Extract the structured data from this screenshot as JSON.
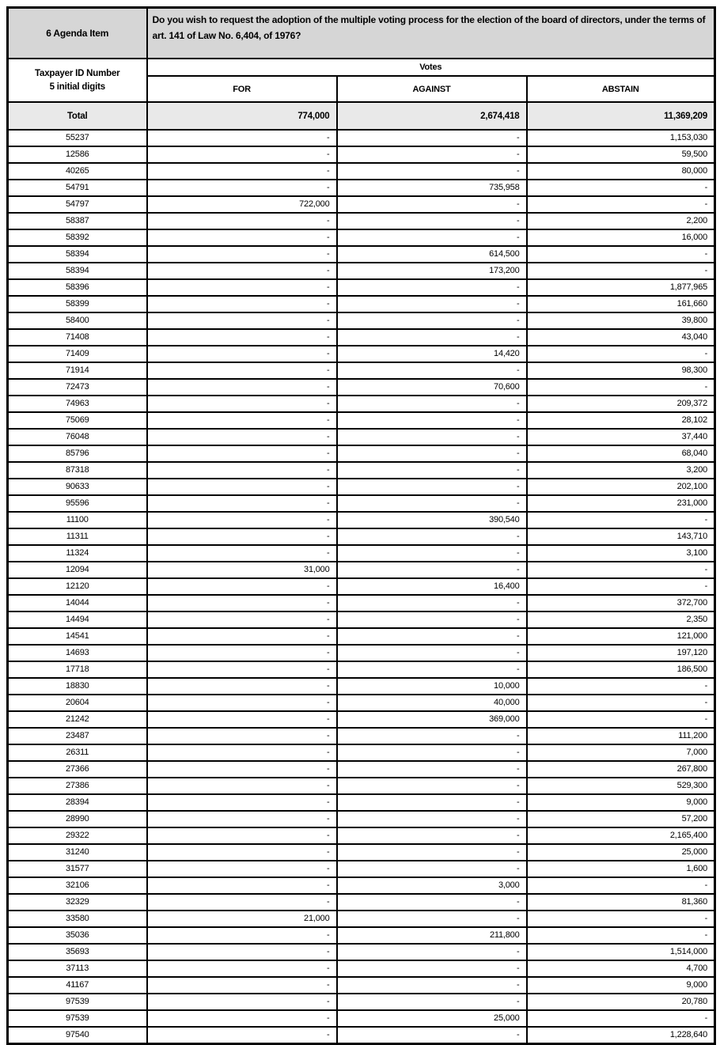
{
  "table": {
    "agenda": {
      "label": "6 Agenda Item",
      "question": "Do you wish to request the adoption of the multiple voting process for the election of the board of directors, under the terms of art. 141 of Law No. 6,404, of 1976?"
    },
    "id_column": {
      "line1": "Taxpayer ID Number",
      "line2": "5 initial digits"
    },
    "votes_label": "Votes",
    "vote_columns": [
      "FOR",
      "AGAINST",
      "ABSTAIN"
    ],
    "total": {
      "label": "Total",
      "for": "774,000",
      "against": "2,674,418",
      "abstain": "11,369,209"
    },
    "empty_cell": "-",
    "rows": [
      {
        "id": "55237",
        "for": "-",
        "against": "-",
        "abstain": "1,153,030"
      },
      {
        "id": "12586",
        "for": "-",
        "against": "-",
        "abstain": "59,500"
      },
      {
        "id": "40265",
        "for": "-",
        "against": "-",
        "abstain": "80,000"
      },
      {
        "id": "54791",
        "for": "-",
        "against": "735,958",
        "abstain": "-"
      },
      {
        "id": "54797",
        "for": "722,000",
        "against": "-",
        "abstain": "-"
      },
      {
        "id": "58387",
        "for": "-",
        "against": "-",
        "abstain": "2,200"
      },
      {
        "id": "58392",
        "for": "-",
        "against": "-",
        "abstain": "16,000"
      },
      {
        "id": "58394",
        "for": "-",
        "against": "614,500",
        "abstain": "-"
      },
      {
        "id": "58394",
        "for": "-",
        "against": "173,200",
        "abstain": "-"
      },
      {
        "id": "58396",
        "for": "-",
        "against": "-",
        "abstain": "1,877,965"
      },
      {
        "id": "58399",
        "for": "-",
        "against": "-",
        "abstain": "161,660"
      },
      {
        "id": "58400",
        "for": "-",
        "against": "-",
        "abstain": "39,800"
      },
      {
        "id": "71408",
        "for": "-",
        "against": "-",
        "abstain": "43,040"
      },
      {
        "id": "71409",
        "for": "-",
        "against": "14,420",
        "abstain": "-"
      },
      {
        "id": "71914",
        "for": "-",
        "against": "-",
        "abstain": "98,300"
      },
      {
        "id": "72473",
        "for": "-",
        "against": "70,600",
        "abstain": "-"
      },
      {
        "id": "74963",
        "for": "-",
        "against": "-",
        "abstain": "209,372"
      },
      {
        "id": "75069",
        "for": "-",
        "against": "-",
        "abstain": "28,102"
      },
      {
        "id": "76048",
        "for": "-",
        "against": "-",
        "abstain": "37,440"
      },
      {
        "id": "85796",
        "for": "-",
        "against": "-",
        "abstain": "68,040"
      },
      {
        "id": "87318",
        "for": "-",
        "against": "-",
        "abstain": "3,200"
      },
      {
        "id": "90633",
        "for": "-",
        "against": "-",
        "abstain": "202,100"
      },
      {
        "id": "95596",
        "for": "-",
        "against": "-",
        "abstain": "231,000"
      },
      {
        "id": "11100",
        "for": "-",
        "against": "390,540",
        "abstain": "-"
      },
      {
        "id": "11311",
        "for": "-",
        "against": "-",
        "abstain": "143,710"
      },
      {
        "id": "11324",
        "for": "-",
        "against": "-",
        "abstain": "3,100"
      },
      {
        "id": "12094",
        "for": "31,000",
        "against": "-",
        "abstain": "-"
      },
      {
        "id": "12120",
        "for": "-",
        "against": "16,400",
        "abstain": "-"
      },
      {
        "id": "14044",
        "for": "-",
        "against": "-",
        "abstain": "372,700"
      },
      {
        "id": "14494",
        "for": "-",
        "against": "-",
        "abstain": "2,350"
      },
      {
        "id": "14541",
        "for": "-",
        "against": "-",
        "abstain": "121,000"
      },
      {
        "id": "14693",
        "for": "-",
        "against": "-",
        "abstain": "197,120"
      },
      {
        "id": "17718",
        "for": "-",
        "against": "-",
        "abstain": "186,500"
      },
      {
        "id": "18830",
        "for": "-",
        "against": "10,000",
        "abstain": "-"
      },
      {
        "id": "20604",
        "for": "-",
        "against": "40,000",
        "abstain": "-"
      },
      {
        "id": "21242",
        "for": "-",
        "against": "369,000",
        "abstain": "-"
      },
      {
        "id": "23487",
        "for": "-",
        "against": "-",
        "abstain": "111,200"
      },
      {
        "id": "26311",
        "for": "-",
        "against": "-",
        "abstain": "7,000"
      },
      {
        "id": "27366",
        "for": "-",
        "against": "-",
        "abstain": "267,800"
      },
      {
        "id": "27386",
        "for": "-",
        "against": "-",
        "abstain": "529,300"
      },
      {
        "id": "28394",
        "for": "-",
        "against": "-",
        "abstain": "9,000"
      },
      {
        "id": "28990",
        "for": "-",
        "against": "-",
        "abstain": "57,200"
      },
      {
        "id": "29322",
        "for": "-",
        "against": "-",
        "abstain": "2,165,400"
      },
      {
        "id": "31240",
        "for": "-",
        "against": "-",
        "abstain": "25,000"
      },
      {
        "id": "31577",
        "for": "-",
        "against": "-",
        "abstain": "1,600"
      },
      {
        "id": "32106",
        "for": "-",
        "against": "3,000",
        "abstain": "-"
      },
      {
        "id": "32329",
        "for": "-",
        "against": "-",
        "abstain": "81,360"
      },
      {
        "id": "33580",
        "for": "21,000",
        "against": "-",
        "abstain": "-"
      },
      {
        "id": "35036",
        "for": "-",
        "against": "211,800",
        "abstain": "-"
      },
      {
        "id": "35693",
        "for": "-",
        "against": "-",
        "abstain": "1,514,000"
      },
      {
        "id": "37113",
        "for": "-",
        "against": "-",
        "abstain": "4,700"
      },
      {
        "id": "41167",
        "for": "-",
        "against": "-",
        "abstain": "9,000"
      },
      {
        "id": "97539",
        "for": "-",
        "against": "-",
        "abstain": "20,780"
      },
      {
        "id": "97539",
        "for": "-",
        "against": "25,000",
        "abstain": "-"
      },
      {
        "id": "97540",
        "for": "-",
        "against": "-",
        "abstain": "1,228,640"
      }
    ]
  },
  "colors": {
    "header_bg": "#d6d6d6",
    "total_bg": "#e9e9e9",
    "border": "#000000",
    "row_bg": "#ffffff"
  }
}
